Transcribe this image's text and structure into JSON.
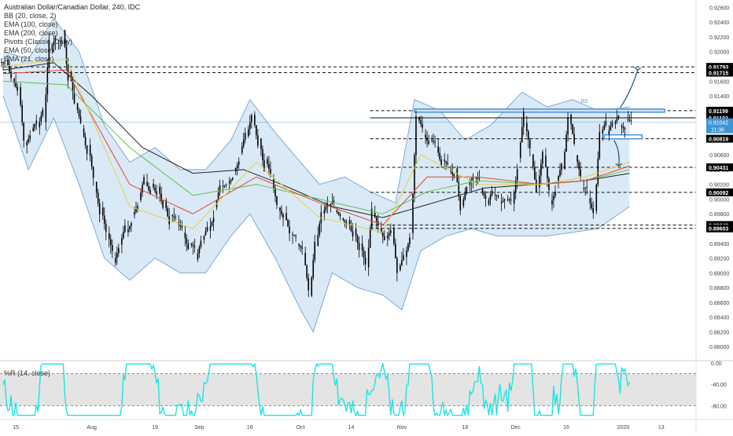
{
  "legend": {
    "title": "Australian Dollar/Canadian Dollar, 240, IDC",
    "lines": [
      "BB (20, close, 2)",
      "EMA (100, close)",
      "EMA (200, close)",
      "Pivots (Classic, Daily)",
      "EMA (50, close)",
      "EMA (21, close)"
    ]
  },
  "wr_label": "%R (14, close)",
  "r2_label": "R2",
  "colors": {
    "candle": "#000000",
    "bb_fill": "#bcd7ef",
    "bb_line": "#7fa9d4",
    "ema21": "#e2d04a",
    "ema50": "#e0462a",
    "ema100": "#5cc14d",
    "ema200": "#222222",
    "zone": "#4a90d9",
    "wr_line": "#1ee3e3",
    "wr_band": "#d9d9d9",
    "axis_text": "#444444",
    "label_bg": "#000000",
    "price_bg": "#3d95d6"
  },
  "chart_data": {
    "type": "line",
    "title": "Australian Dollar/Canadian Dollar, 240, IDC",
    "ylim": [
      0.878,
      0.927
    ],
    "y_ticks": [
      "0.92600",
      "0.92400",
      "0.92200",
      "0.92000",
      "0.91800",
      "0.91600",
      "0.91400",
      "0.91200",
      "0.91000",
      "0.90800",
      "0.90600",
      "0.90400",
      "0.90200",
      "0.90000",
      "0.89800",
      "0.89600",
      "0.89400",
      "0.89200",
      "0.89000",
      "0.88800",
      "0.88600",
      "0.88400",
      "0.88200",
      "0.88000"
    ],
    "x_ticks": [
      "15",
      "Aug",
      "19",
      "Sep",
      "16",
      "Oct",
      "14",
      "Nov",
      "18",
      "Dec",
      "16",
      "2020",
      "13"
    ],
    "x_tick_index": [
      2,
      14,
      24,
      31,
      39,
      47,
      55,
      63,
      73,
      81,
      89,
      98,
      104
    ],
    "n_bars": 100,
    "price_path": [
      [
        0,
        0.9185
      ],
      [
        2,
        0.9155
      ],
      [
        3,
        0.9075
      ],
      [
        4,
        0.909
      ],
      [
        6,
        0.911
      ],
      [
        7,
        0.921
      ],
      [
        9,
        0.9225
      ],
      [
        10,
        0.917
      ],
      [
        13,
        0.907
      ],
      [
        15,
        0.899
      ],
      [
        17,
        0.892
      ],
      [
        18,
        0.8935
      ],
      [
        20,
        0.8975
      ],
      [
        22,
        0.902
      ],
      [
        24,
        0.9015
      ],
      [
        26,
        0.8975
      ],
      [
        28,
        0.896
      ],
      [
        30,
        0.8925
      ],
      [
        32,
        0.896
      ],
      [
        34,
        0.901
      ],
      [
        36,
        0.904
      ],
      [
        38,
        0.908
      ],
      [
        39,
        0.9115
      ],
      [
        41,
        0.905
      ],
      [
        43,
        0.8995
      ],
      [
        45,
        0.896
      ],
      [
        47,
        0.893
      ],
      [
        48,
        0.8865
      ],
      [
        49,
        0.894
      ],
      [
        50,
        0.8985
      ],
      [
        52,
        0.899
      ],
      [
        55,
        0.896
      ],
      [
        57,
        0.8915
      ],
      [
        58,
        0.8975
      ],
      [
        60,
        0.8945
      ],
      [
        61,
        0.8965
      ],
      [
        62,
        0.8905
      ],
      [
        64,
        0.895
      ],
      [
        65,
        0.9105
      ],
      [
        67,
        0.908
      ],
      [
        69,
        0.9055
      ],
      [
        71,
        0.904
      ],
      [
        72,
        0.899
      ],
      [
        74,
        0.9035
      ],
      [
        76,
        0.9
      ],
      [
        78,
        0.9
      ],
      [
        80,
        0.899
      ],
      [
        82,
        0.911
      ],
      [
        84,
        0.902
      ],
      [
        85,
        0.906
      ],
      [
        86,
        0.9
      ],
      [
        88,
        0.904
      ],
      [
        89,
        0.911
      ],
      [
        91,
        0.902
      ],
      [
        93,
        0.899
      ],
      [
        94,
        0.9085
      ],
      [
        96,
        0.9105
      ],
      [
        98,
        0.9104
      ]
    ],
    "seed": 7,
    "ema21_path": [
      [
        0,
        0.918
      ],
      [
        10,
        0.919
      ],
      [
        20,
        0.899
      ],
      [
        30,
        0.896
      ],
      [
        40,
        0.905
      ],
      [
        50,
        0.8975
      ],
      [
        60,
        0.8955
      ],
      [
        66,
        0.906
      ],
      [
        75,
        0.902
      ],
      [
        85,
        0.902
      ],
      [
        92,
        0.903
      ],
      [
        99,
        0.905
      ]
    ],
    "ema50_path": [
      [
        0,
        0.917
      ],
      [
        10,
        0.9175
      ],
      [
        20,
        0.902
      ],
      [
        30,
        0.898
      ],
      [
        40,
        0.903
      ],
      [
        50,
        0.8995
      ],
      [
        60,
        0.8965
      ],
      [
        67,
        0.903
      ],
      [
        75,
        0.903
      ],
      [
        85,
        0.902
      ],
      [
        92,
        0.9025
      ],
      [
        99,
        0.9045
      ]
    ],
    "ema100_path": [
      [
        0,
        0.916
      ],
      [
        10,
        0.9155
      ],
      [
        20,
        0.907
      ],
      [
        30,
        0.9005
      ],
      [
        40,
        0.902
      ],
      [
        50,
        0.9
      ],
      [
        60,
        0.898
      ],
      [
        67,
        0.901
      ],
      [
        75,
        0.9025
      ],
      [
        85,
        0.902
      ],
      [
        92,
        0.9025
      ],
      [
        99,
        0.904
      ]
    ],
    "ema200_path": [
      [
        0,
        0.9175
      ],
      [
        8,
        0.9185
      ],
      [
        14,
        0.914
      ],
      [
        22,
        0.907
      ],
      [
        30,
        0.9035
      ],
      [
        38,
        0.904
      ],
      [
        44,
        0.902
      ],
      [
        52,
        0.899
      ],
      [
        60,
        0.8975
      ],
      [
        68,
        0.8995
      ],
      [
        76,
        0.9015
      ],
      [
        84,
        0.902
      ],
      [
        92,
        0.9025
      ],
      [
        99,
        0.9035
      ]
    ],
    "bb_upper_path": [
      [
        0,
        0.92
      ],
      [
        4,
        0.919
      ],
      [
        8,
        0.9245
      ],
      [
        12,
        0.92
      ],
      [
        16,
        0.91
      ],
      [
        20,
        0.905
      ],
      [
        24,
        0.907
      ],
      [
        28,
        0.904
      ],
      [
        32,
        0.904
      ],
      [
        36,
        0.908
      ],
      [
        39,
        0.9135
      ],
      [
        43,
        0.909
      ],
      [
        47,
        0.905
      ],
      [
        50,
        0.902
      ],
      [
        54,
        0.903
      ],
      [
        58,
        0.901
      ],
      [
        62,
        0.8995
      ],
      [
        65,
        0.9135
      ],
      [
        69,
        0.912
      ],
      [
        73,
        0.908
      ],
      [
        77,
        0.91
      ],
      [
        82,
        0.9145
      ],
      [
        86,
        0.9125
      ],
      [
        90,
        0.9135
      ],
      [
        94,
        0.912
      ],
      [
        99,
        0.9125
      ]
    ],
    "bb_lower_path": [
      [
        0,
        0.914
      ],
      [
        4,
        0.904
      ],
      [
        8,
        0.911
      ],
      [
        12,
        0.902
      ],
      [
        16,
        0.892
      ],
      [
        20,
        0.889
      ],
      [
        24,
        0.892
      ],
      [
        28,
        0.89
      ],
      [
        32,
        0.89
      ],
      [
        36,
        0.895
      ],
      [
        39,
        0.898
      ],
      [
        43,
        0.892
      ],
      [
        47,
        0.885
      ],
      [
        49,
        0.882
      ],
      [
        52,
        0.89
      ],
      [
        56,
        0.888
      ],
      [
        60,
        0.887
      ],
      [
        63,
        0.885
      ],
      [
        66,
        0.893
      ],
      [
        70,
        0.895
      ],
      [
        74,
        0.896
      ],
      [
        78,
        0.895
      ],
      [
        82,
        0.895
      ],
      [
        86,
        0.895
      ],
      [
        90,
        0.8955
      ],
      [
        94,
        0.896
      ],
      [
        99,
        0.899
      ]
    ],
    "horizontal_levels": [
      {
        "value": 0.91793,
        "label": "0.91793",
        "style": "dashed"
      },
      {
        "value": 0.91715,
        "label": "0.91715",
        "style": "dashed"
      },
      {
        "value": 0.91199,
        "label": "0.91199",
        "style": "dashed"
      },
      {
        "value": 0.91102,
        "label": "0.91102",
        "style": "solid"
      },
      {
        "value": 0.90819,
        "label": "0.90819",
        "style": "dashed"
      },
      {
        "value": 0.90431,
        "label": "0.90431",
        "style": "dashed"
      },
      {
        "value": 0.90092,
        "label": "0.90092",
        "style": "dashed"
      },
      {
        "value": 0.89649,
        "label": "0.89649",
        "style": "dashed"
      },
      {
        "value": 0.89603,
        "label": "0.89603",
        "style": "dashed"
      }
    ],
    "current_price": {
      "value": 0.91042,
      "label": "0.91042",
      "countdown": "11:36"
    },
    "resistance_zone": {
      "value": 0.912,
      "x_start": 65,
      "x_end": 104
    },
    "support_zone": {
      "value": 0.9085,
      "x_start": 95,
      "x_end": 104
    },
    "wr": {
      "ylim": [
        -100,
        0
      ],
      "y_ticks": [
        "0.00",
        "-40.00",
        "-80.00"
      ],
      "band": [
        -20,
        -80
      ],
      "seed": 11
    }
  }
}
